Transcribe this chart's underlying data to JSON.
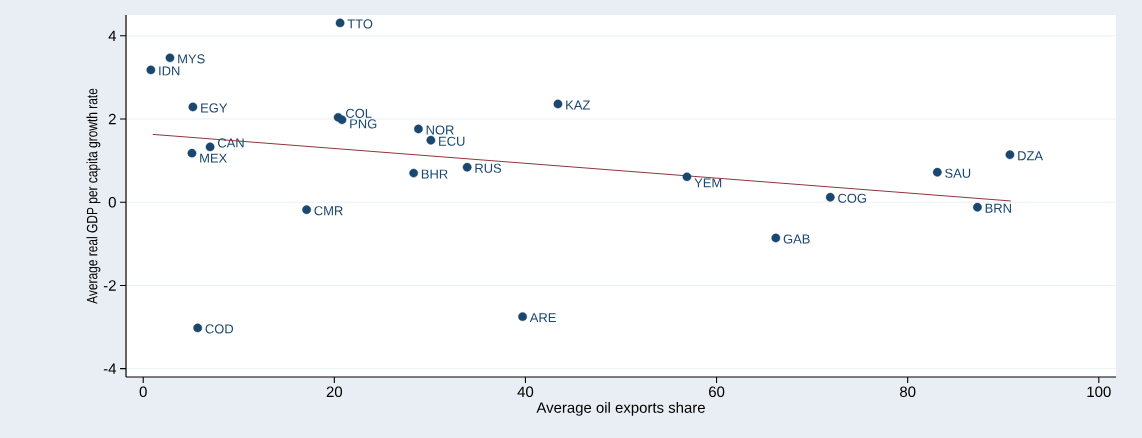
{
  "chart_data": {
    "type": "scatter",
    "xlabel": "Average oil exports share",
    "ylabel": "Average real GDP per capita growth rate",
    "xlim": [
      -1.8,
      101.8
    ],
    "ylim": [
      -4.2,
      4.5
    ],
    "xticks": [
      0,
      20,
      40,
      60,
      80,
      100
    ],
    "yticks": [
      -4,
      -2,
      0,
      2,
      4
    ],
    "grid": "y",
    "series": [
      {
        "type": "scatter",
        "color": "#1a476f",
        "marker": "circle",
        "x": [
          20.6,
          2.8,
          0.8,
          5.2,
          20.4,
          20.8,
          43.4,
          28.8,
          30.1,
          7.0,
          5.1,
          28.3,
          33.9,
          56.9,
          83.1,
          90.7,
          71.9,
          87.3,
          17.1,
          66.2,
          5.7,
          39.7
        ],
        "values": [
          4.31,
          3.47,
          3.18,
          2.29,
          2.04,
          1.98,
          2.36,
          1.76,
          1.49,
          1.33,
          1.18,
          0.7,
          0.84,
          0.61,
          0.72,
          1.14,
          0.12,
          -0.12,
          -0.18,
          -0.86,
          -3.02,
          -2.75
        ],
        "value_labels": [
          "TTO",
          "MYS",
          "IDN",
          "EGY",
          "COL",
          "PNG",
          "KAZ",
          "NOR",
          "ECU",
          "CAN",
          "MEX",
          "BHR",
          "RUS",
          "YEM",
          "SAU",
          "DZA",
          "COG",
          "BRN",
          "CMR",
          "GAB",
          "COD",
          "ARE"
        ]
      },
      {
        "type": "line",
        "color": "#90353b",
        "marker": "none",
        "line_style": "solid",
        "x": [
          1.0,
          90.8
        ],
        "values": [
          1.63,
          0.03
        ]
      }
    ]
  }
}
